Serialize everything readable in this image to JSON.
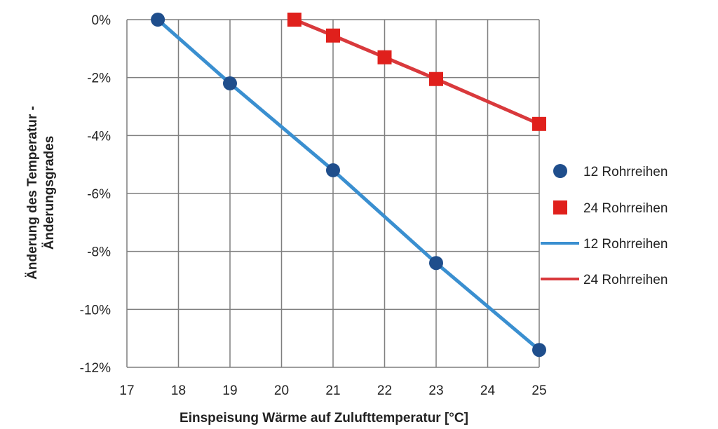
{
  "chart_data": {
    "type": "line",
    "xlabel": "Einspeisung Wärme auf Zulufttemperatur  [°C]",
    "ylabel_lines": [
      "Änderung des Temperatur -",
      "Änderungsgrades"
    ],
    "xlim": [
      17,
      25
    ],
    "ylim": [
      -12,
      0
    ],
    "x_ticks": [
      17,
      18,
      19,
      20,
      21,
      22,
      23,
      24,
      25
    ],
    "y_ticks": [
      0,
      -2,
      -4,
      -6,
      -8,
      -10,
      -12
    ],
    "y_tick_labels": [
      "0%",
      "-2%",
      "-4%",
      "-6%",
      "-8%",
      "-10%",
      "-12%"
    ],
    "grid": true,
    "legend_position": "right",
    "series": [
      {
        "name": "12 Rohrreihen",
        "marker": "circle",
        "color": "#1f4e8c",
        "line_color": "#3a8fd0",
        "x": [
          17.6,
          19,
          21,
          23,
          25
        ],
        "y": [
          0,
          -2.2,
          -5.2,
          -8.4,
          -11.4
        ]
      },
      {
        "name": "24 Rohrreihen",
        "marker": "square",
        "color": "#e0201c",
        "line_color": "#d9393c",
        "x": [
          20.25,
          21,
          22,
          23,
          25
        ],
        "y": [
          0,
          -0.55,
          -1.3,
          -2.05,
          -3.6
        ]
      }
    ],
    "legend": [
      {
        "type": "marker",
        "shape": "circle",
        "color": "#1f4e8c",
        "label": "12 Rohrreihen"
      },
      {
        "type": "marker",
        "shape": "square",
        "color": "#e0201c",
        "label": "24 Rohrreihen"
      },
      {
        "type": "line",
        "color": "#3a8fd0",
        "label": "12 Rohrreihen"
      },
      {
        "type": "line",
        "color": "#d9393c",
        "label": "24 Rohrreihen"
      }
    ]
  }
}
